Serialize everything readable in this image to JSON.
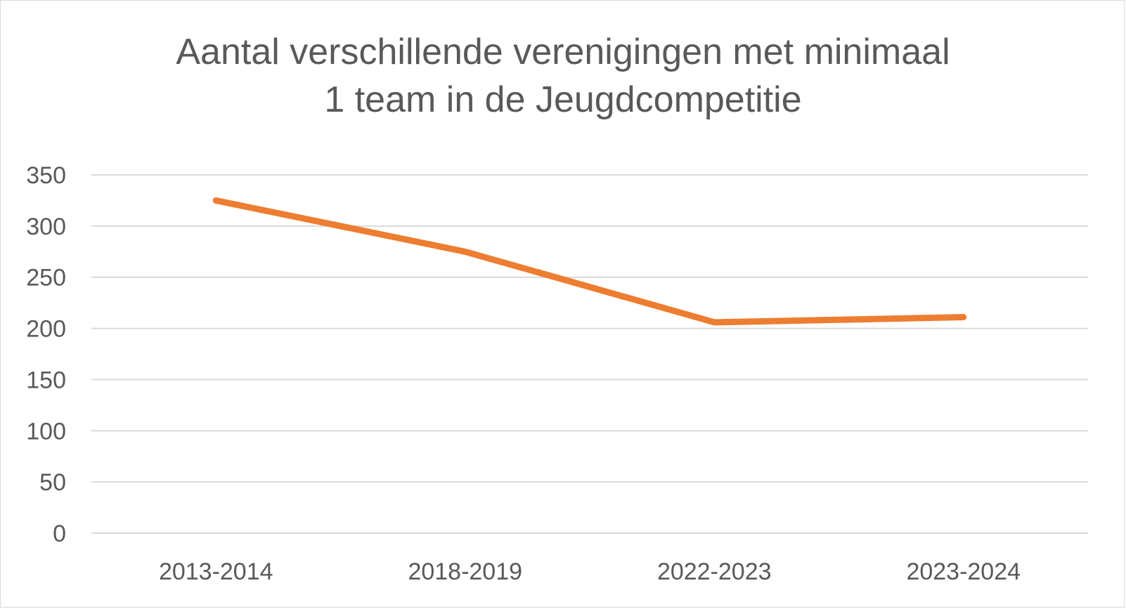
{
  "chart_data": {
    "type": "line",
    "title_lines": [
      "Aantal verschillende verenigingen met minimaal",
      "1 team in de Jeugdcompetitie"
    ],
    "xlabel": "",
    "ylabel": "",
    "categories": [
      "2013-2014",
      "2018-2019",
      "2022-2023",
      "2023-2024"
    ],
    "values": [
      325,
      275,
      206,
      211
    ],
    "ylim": [
      0,
      350
    ],
    "yticks": [
      "0",
      "50",
      "100",
      "150",
      "200",
      "250",
      "300",
      "350"
    ],
    "grid": true,
    "legend": "none",
    "line_color": "#ED7D31",
    "grid_color": "#d9d9d9"
  }
}
